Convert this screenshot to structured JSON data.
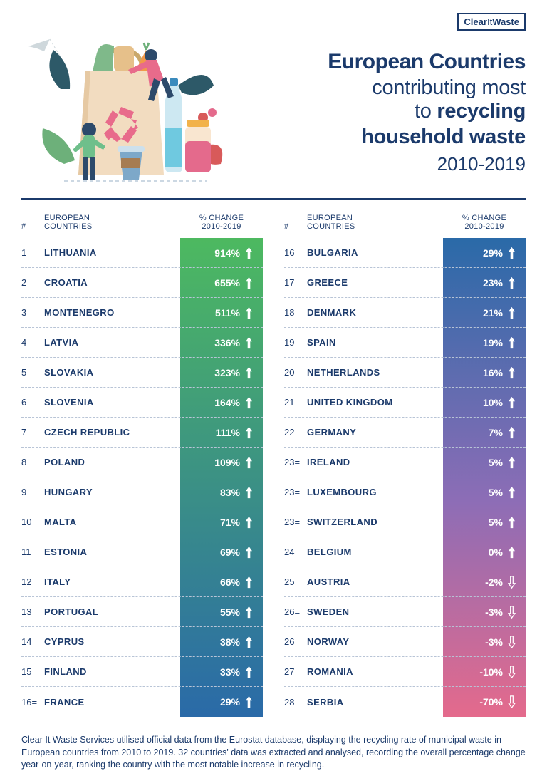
{
  "brand": {
    "part1": "Clear",
    "part2": "It",
    "part3": "Waste"
  },
  "title": {
    "line1": "European Countries",
    "line2_a": "contributing most",
    "line2_b_pre": "to ",
    "line2_b_bold": "recycling",
    "line3": "household waste",
    "line4": "2010-2019"
  },
  "headers": {
    "rank": "#",
    "country": "EUROPEAN COUNTRIES",
    "change": "% CHANGE 2010-2019"
  },
  "column1_gradient": {
    "from": "#4db960",
    "to": "#2a6aa8"
  },
  "column2_gradient": {
    "from": "#2a6aa8",
    "mid": "#8d6db6",
    "to": "#e46a8c"
  },
  "illustration_colors": {
    "bag": "#f2dcc0",
    "bag_dark": "#e6c9a3",
    "leaf_dark": "#2d5968",
    "leaf_green": "#6db07a",
    "leaf_red": "#d85a5a",
    "recycle": "#e86b8b",
    "bottle_cap": "#3b8bbd",
    "bottle_body": "#cde8f2",
    "jar_lid": "#f2b24a",
    "jar_body": "#f9e6d0",
    "jar_liquid": "#e46a8c",
    "cup": "#7da8c9",
    "cup_sleeve": "#a67c52",
    "person1_shirt": "#6fbf8b",
    "person1_pants": "#2d4a6b",
    "person2_shirt": "#e86b8b",
    "person2_pants": "#2d4a6b",
    "carrot": "#f2994a",
    "bread": "#e6c08a",
    "greens": "#7fb98a",
    "plane": "#cfd8dc"
  },
  "rows_left": [
    {
      "rank": "1",
      "country": "LITHUANIA",
      "change": "914%",
      "dir": "up"
    },
    {
      "rank": "2",
      "country": "CROATIA",
      "change": "655%",
      "dir": "up"
    },
    {
      "rank": "3",
      "country": "MONTENEGRO",
      "change": "511%",
      "dir": "up"
    },
    {
      "rank": "4",
      "country": "LATVIA",
      "change": "336%",
      "dir": "up"
    },
    {
      "rank": "5",
      "country": "SLOVAKIA",
      "change": "323%",
      "dir": "up"
    },
    {
      "rank": "6",
      "country": "SLOVENIA",
      "change": "164%",
      "dir": "up"
    },
    {
      "rank": "7",
      "country": "CZECH REPUBLIC",
      "change": "111%",
      "dir": "up"
    },
    {
      "rank": "8",
      "country": "POLAND",
      "change": "109%",
      "dir": "up"
    },
    {
      "rank": "9",
      "country": "HUNGARY",
      "change": "83%",
      "dir": "up"
    },
    {
      "rank": "10",
      "country": "MALTA",
      "change": "71%",
      "dir": "up"
    },
    {
      "rank": "11",
      "country": "ESTONIA",
      "change": "69%",
      "dir": "up"
    },
    {
      "rank": "12",
      "country": "ITALY",
      "change": "66%",
      "dir": "up"
    },
    {
      "rank": "13",
      "country": "PORTUGAL",
      "change": "55%",
      "dir": "up"
    },
    {
      "rank": "14",
      "country": "CYPRUS",
      "change": "38%",
      "dir": "up"
    },
    {
      "rank": "15",
      "country": "FINLAND",
      "change": "33%",
      "dir": "up"
    },
    {
      "rank": "16=",
      "country": "FRANCE",
      "change": "29%",
      "dir": "up"
    }
  ],
  "rows_right": [
    {
      "rank": "16=",
      "country": "BULGARIA",
      "change": "29%",
      "dir": "up"
    },
    {
      "rank": "17",
      "country": "GREECE",
      "change": "23%",
      "dir": "up"
    },
    {
      "rank": "18",
      "country": "DENMARK",
      "change": "21%",
      "dir": "up"
    },
    {
      "rank": "19",
      "country": "SPAIN",
      "change": "19%",
      "dir": "up"
    },
    {
      "rank": "20",
      "country": "NETHERLANDS",
      "change": "16%",
      "dir": "up"
    },
    {
      "rank": "21",
      "country": "UNITED KINGDOM",
      "change": "10%",
      "dir": "up"
    },
    {
      "rank": "22",
      "country": "GERMANY",
      "change": "7%",
      "dir": "up"
    },
    {
      "rank": "23=",
      "country": "IRELAND",
      "change": "5%",
      "dir": "up"
    },
    {
      "rank": "23=",
      "country": "LUXEMBOURG",
      "change": "5%",
      "dir": "up"
    },
    {
      "rank": "23=",
      "country": "SWITZERLAND",
      "change": "5%",
      "dir": "up"
    },
    {
      "rank": "24",
      "country": "BELGIUM",
      "change": "0%",
      "dir": "up"
    },
    {
      "rank": "25",
      "country": "AUSTRIA",
      "change": "-2%",
      "dir": "down"
    },
    {
      "rank": "26=",
      "country": "SWEDEN",
      "change": "-3%",
      "dir": "down"
    },
    {
      "rank": "26=",
      "country": "NORWAY",
      "change": "-3%",
      "dir": "down"
    },
    {
      "rank": "27",
      "country": "ROMANIA",
      "change": "-10%",
      "dir": "down"
    },
    {
      "rank": "28",
      "country": "SERBIA",
      "change": "-70%",
      "dir": "down"
    }
  ],
  "footnote": "Clear It Waste Services utilised official data from the Eurostat database, displaying the recycling rate of municipal waste in European countries from 2010 to 2019. 32 countries' data was extracted and analysed, recording the overall percentage change year-on-year, ranking the country with the most notable increase in recycling."
}
